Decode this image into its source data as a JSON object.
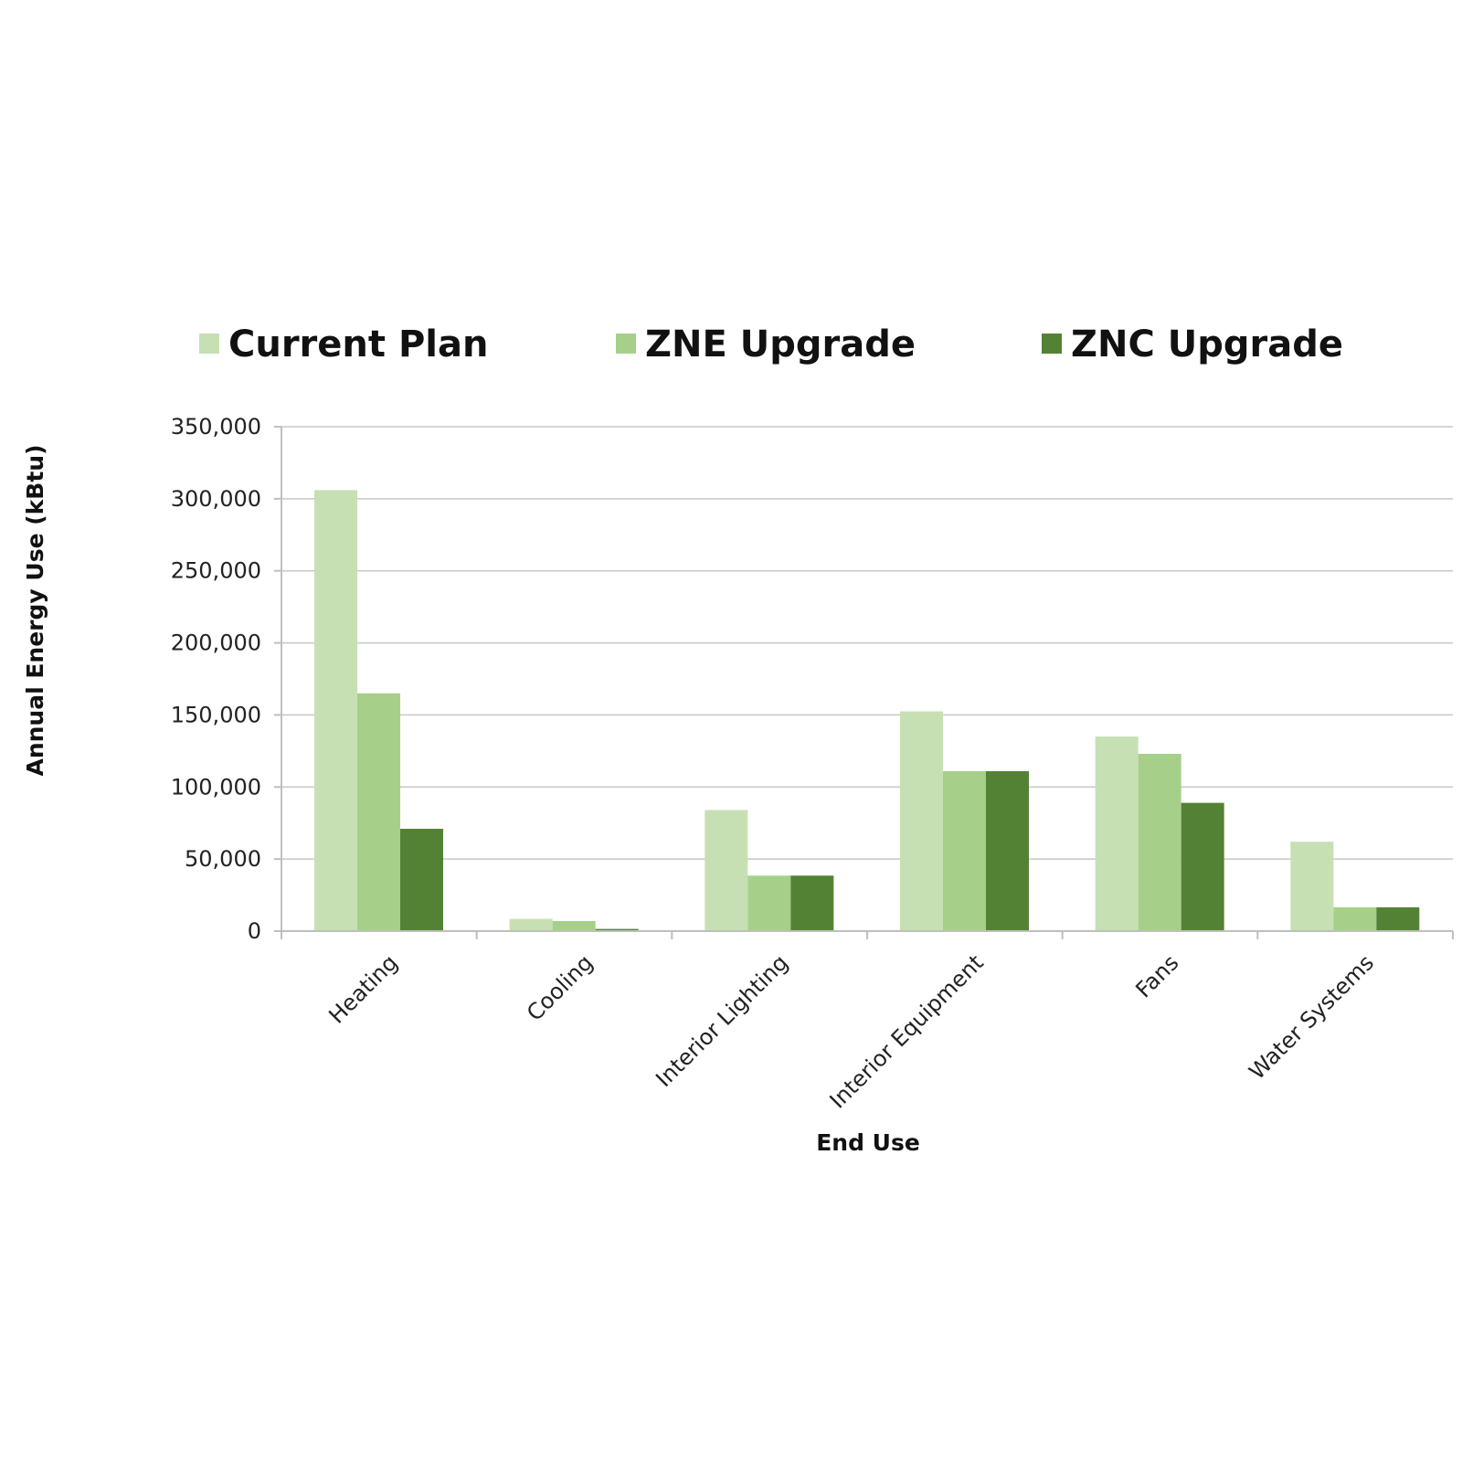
{
  "chart_data": {
    "type": "bar",
    "categories": [
      "Heating",
      "Cooling",
      "Interior Lighting",
      "Interior Equipment",
      "Fans",
      "Water Systems"
    ],
    "series": [
      {
        "name": "Current Plan",
        "color": "#c6e0b4",
        "values": [
          306000,
          8500,
          84000,
          152500,
          135000,
          62000
        ]
      },
      {
        "name": "ZNE Upgrade",
        "color": "#a6d08a",
        "values": [
          165000,
          7000,
          38500,
          111000,
          123000,
          16500
        ]
      },
      {
        "name": "ZNC Upgrade",
        "color": "#548235",
        "values": [
          71000,
          1500,
          38500,
          111000,
          89000,
          16500
        ]
      }
    ],
    "xlabel": "End Use",
    "ylabel": "Annual Energy Use (kBtu)",
    "ylim": [
      0,
      350000
    ],
    "yticks": [
      0,
      50000,
      100000,
      150000,
      200000,
      250000,
      300000,
      350000
    ],
    "ytick_labels": [
      "0",
      "50,000",
      "100,000",
      "150,000",
      "200,000",
      "250,000",
      "300,000",
      "350,000"
    ],
    "grid": true,
    "legend_position": "top"
  }
}
